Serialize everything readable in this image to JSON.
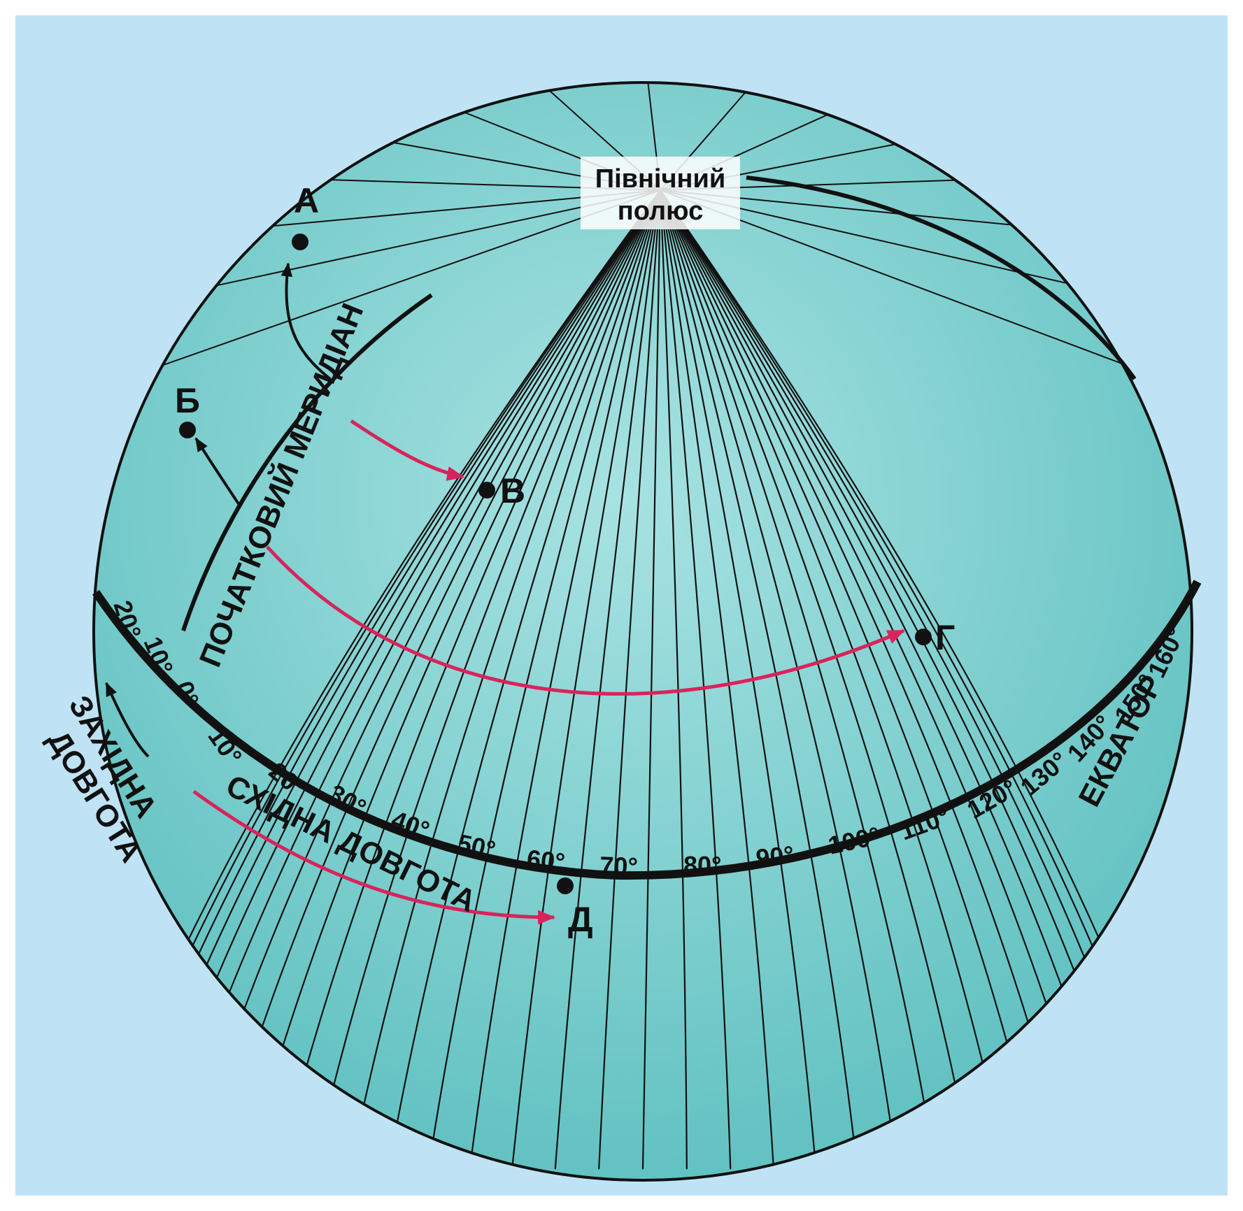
{
  "colors": {
    "page_background": "#bfe3f5",
    "globe_fill": "#5fc0c0",
    "globe_highlight": "#a8e2e2",
    "grid_line": "#111111",
    "arrow_red": "#d8245a",
    "arrow_black": "#111111"
  },
  "labels": {
    "north_pole_line1": "Північний",
    "north_pole_line2": "полюс",
    "prime_meridian": "ПОЧАТКОВИЙ МЕРИДІАН",
    "equator": "ЕКВАТОР",
    "west_longitude_line1": "ЗАХІДНА",
    "west_longitude_line2": "ДОВГОТА",
    "east_longitude": "СХІДНА ДОВГОТА"
  },
  "points": {
    "a": "А",
    "b": "Б",
    "v": "В",
    "g": "Г",
    "d": "Д"
  },
  "equator_ticks": {
    "west": [
      "20°",
      "10°"
    ],
    "zero": "0°",
    "east": [
      "10°",
      "20°",
      "30°",
      "40°",
      "50°",
      "60°",
      "70°",
      "80°",
      "90°",
      "100°",
      "110°",
      "120°",
      "130°",
      "140°",
      "150°",
      "160°"
    ]
  }
}
